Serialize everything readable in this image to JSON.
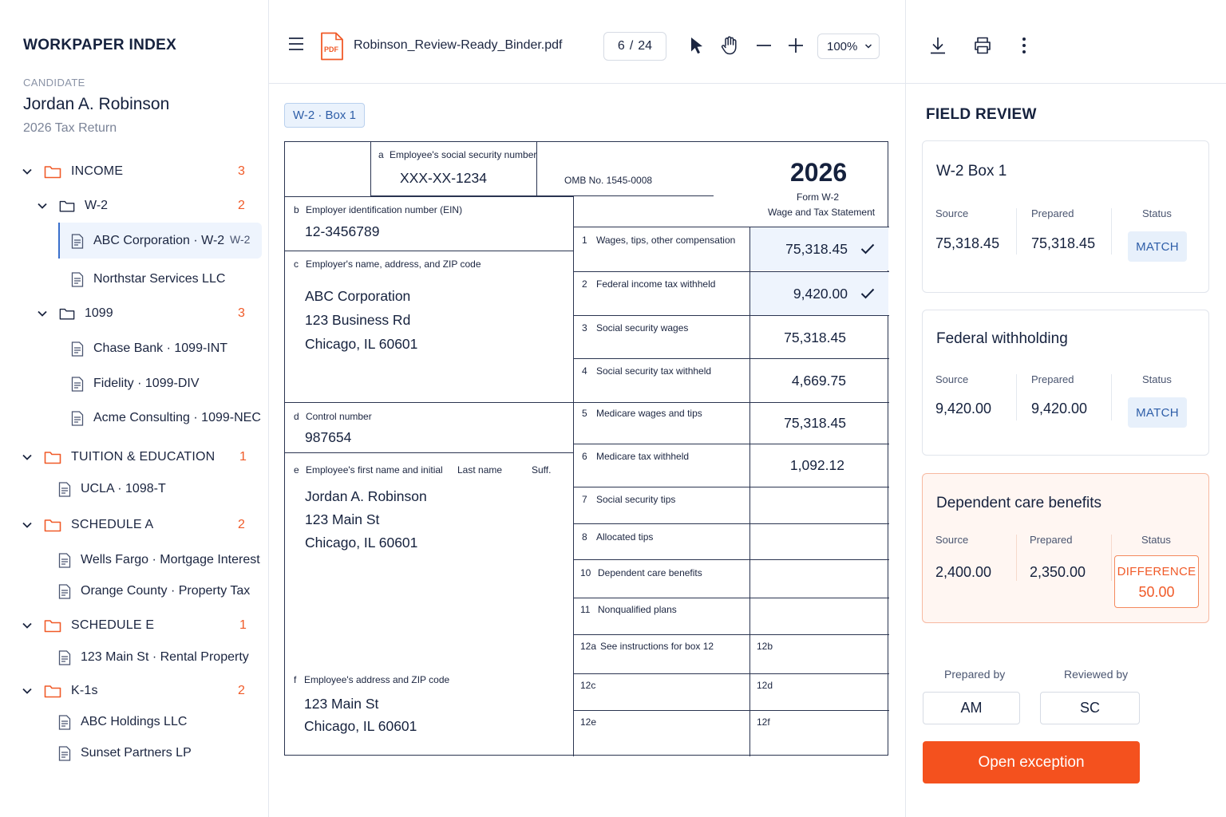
{
  "sidebar": {
    "title": "WORKPAPER INDEX",
    "candidate_label": "CANDIDATE",
    "candidate_name": "Jordan A. Robinson",
    "candidate_sub": "2026 Tax Return",
    "groups": {
      "income": {
        "label": "INCOME",
        "count": "3"
      },
      "w2": {
        "label": "W-2",
        "count": "2"
      },
      "w2_abc": {
        "label": "ABC Corporation · W-2",
        "tag": "W-2"
      },
      "w2_northstar": {
        "label": "Northstar Services LLC"
      },
      "f1099": {
        "label": "1099",
        "count": "3"
      },
      "f1099_chase": {
        "label": "Chase Bank · 1099-INT"
      },
      "f1099_fidelity": {
        "label": "Fidelity · 1099-DIV"
      },
      "f1099_acme": {
        "label": "Acme Consulting · 1099-NEC"
      },
      "tuition": {
        "label": "TUITION & EDUCATION",
        "count": "1"
      },
      "tuition_ucla": {
        "label": "UCLA · 1098-T"
      },
      "schedA": {
        "label": "SCHEDULE A",
        "count": "2"
      },
      "schedA_wf": {
        "label": "Wells Fargo · Mortgage Interest"
      },
      "schedA_oc": {
        "label": "Orange County · Property Tax"
      },
      "schedE": {
        "label": "SCHEDULE E",
        "count": "1"
      },
      "schedE_main": {
        "label": "123 Main St · Rental Property"
      },
      "k1": {
        "label": "K-1s",
        "count": "2"
      },
      "k1_abc": {
        "label": "ABC Holdings LLC"
      },
      "k1_sunset": {
        "label": "Sunset Partners LP"
      }
    }
  },
  "toolbar": {
    "file_name": "Robinson_Review-Ready_Binder.pdf",
    "pdf_icon_text": "PDF",
    "page_current": "6",
    "page_sep": "/",
    "page_total": "24",
    "zoom": "100%"
  },
  "document": {
    "chip": "W-2 · Box 1",
    "form": {
      "a_label": "a",
      "a_text": "Employee's social security number",
      "ssn": "XXX-XX-1234",
      "omb": "OMB No. 1545-0008",
      "year": "2026",
      "form_name": "Form W-2",
      "form_title": "Wage and Tax Statement",
      "b_label": "b",
      "b_text": "Employer identification number (EIN)",
      "ein": "12-3456789",
      "c_label": "c",
      "c_text": "Employer's name, address, and ZIP code",
      "employer_line1": "ABC Corporation",
      "employer_line2": "123 Business Rd",
      "employer_line3": "Chicago, IL 60601",
      "d_label": "d",
      "d_text": "Control number",
      "control": "987654",
      "e_label": "e",
      "e_text": "Employee's first name and initial",
      "e_last": "Last name",
      "e_suff": "Suff.",
      "employee_line1": "Jordan A. Robinson",
      "employee_line2": "123 Main St",
      "employee_line3": "Chicago, IL 60601",
      "f_label": "f",
      "f_text": "Employee's address and ZIP code",
      "emp_addr1": "123 Main St",
      "emp_addr2": "Chicago, IL 60601",
      "boxes": [
        {
          "no": "1",
          "label": "Wages, tips, other compensation",
          "value": "75,318.45"
        },
        {
          "no": "2",
          "label": "Federal income tax withheld",
          "value": "9,420.00"
        },
        {
          "no": "3",
          "label": "Social security wages",
          "value": "75,318.45"
        },
        {
          "no": "4",
          "label": "Social security tax withheld",
          "value": "4,669.75"
        },
        {
          "no": "5",
          "label": "Medicare wages and tips",
          "value": "75,318.45"
        },
        {
          "no": "6",
          "label": "Medicare tax withheld",
          "value": "1,092.12"
        },
        {
          "no": "7",
          "label": "Social security tips",
          "value": ""
        },
        {
          "no": "8",
          "label": "Allocated tips",
          "value": ""
        },
        {
          "no": "10",
          "label": "Dependent care benefits",
          "value": ""
        },
        {
          "no": "11",
          "label": "Nonqualified plans",
          "value": ""
        }
      ],
      "box12a": "12a",
      "box12a_text": "See instructions for box 12",
      "box12b": "12b",
      "box12c": "12c",
      "box12d": "12d",
      "box12e": "12e",
      "box12f": "12f"
    }
  },
  "review": {
    "title": "FIELD REVIEW",
    "col_source": "Source",
    "col_prepared": "Prepared",
    "col_status": "Status",
    "cards": [
      {
        "title": "W-2 Box 1",
        "source": "75,318.45",
        "prepared": "75,318.45",
        "status": "MATCH"
      },
      {
        "title": "Federal withholding",
        "source": "9,420.00",
        "prepared": "9,420.00",
        "status": "MATCH"
      },
      {
        "title": "Dependent care benefits",
        "source": "2,400.00",
        "prepared": "2,350.00",
        "status": "DIFFERENCE",
        "difference": "50.00"
      }
    ],
    "prepared_by_label": "Prepared by",
    "prepared_by": "AM",
    "reviewed_by_label": "Reviewed by",
    "reviewed_by": "SC",
    "open_exception": "Open exception"
  },
  "colors": {
    "accent_orange": "#f4511e",
    "accent_blue": "#2e5ea8",
    "highlight": "#eef4fd",
    "text_dark": "#15213d"
  },
  "icons": [
    "hamburger-icon",
    "pdf-file-icon",
    "pointer-icon",
    "hand-icon",
    "zoom-out-icon",
    "zoom-in-icon",
    "download-icon",
    "print-icon",
    "more-vertical-icon",
    "chevron-down-icon",
    "folder-icon",
    "document-icon",
    "checkmark-icon"
  ]
}
